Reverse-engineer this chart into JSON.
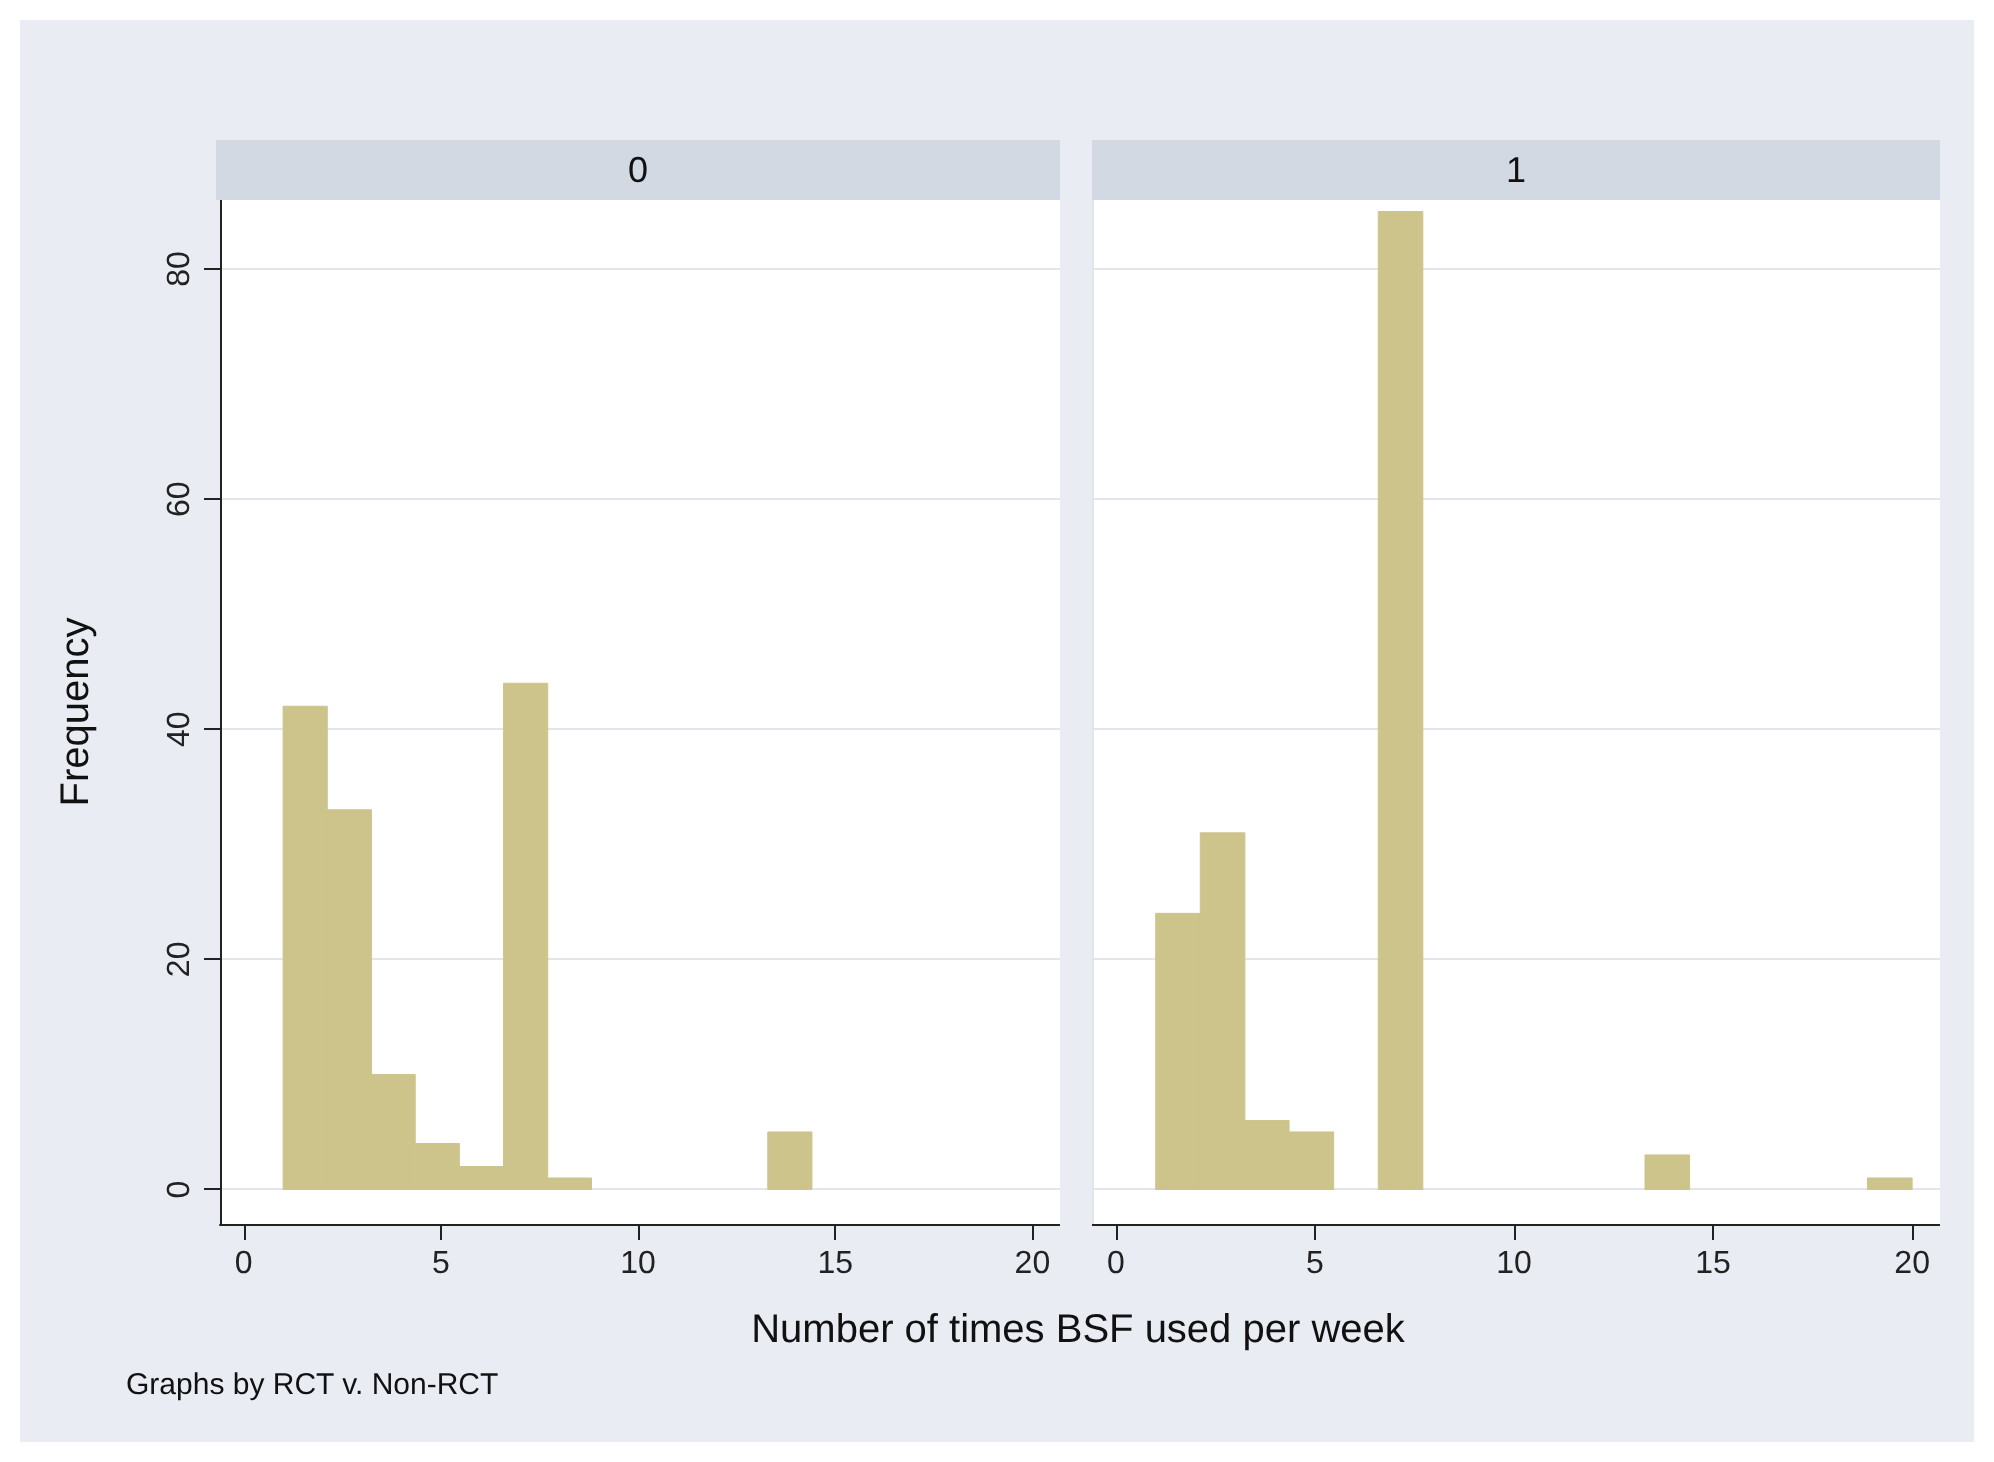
{
  "chart_data": [
    {
      "type": "histogram",
      "title": "0",
      "xlabel": "Number of times BSF used per week",
      "ylabel": "Frequency",
      "annotations": [
        "Graphs by RCT v. Non-RCT"
      ],
      "color": "#cdc48c",
      "bins": [
        1,
        2.12,
        3.24,
        4.35,
        5.47,
        6.59,
        7.71,
        8.82,
        9.94,
        11.06,
        12.18,
        13.29,
        14.41,
        15.53,
        16.65,
        17.76,
        18.88,
        20
      ],
      "values": [
        42,
        33,
        10,
        4,
        2,
        44,
        1,
        0,
        0,
        0,
        0,
        5,
        0,
        0,
        0,
        0,
        0
      ],
      "xlim": [
        -0.6,
        20.7
      ],
      "xticks": [
        0,
        5,
        10,
        15,
        20
      ],
      "ylim": [
        -3,
        86
      ],
      "yticks": [
        0,
        20,
        40,
        60,
        80
      ],
      "grid": "y"
    },
    {
      "type": "histogram",
      "title": "1",
      "color": "#cdc48c",
      "bins": [
        1,
        2.12,
        3.24,
        4.35,
        5.47,
        6.59,
        7.71,
        8.82,
        9.94,
        11.06,
        12.18,
        13.29,
        14.41,
        15.53,
        16.65,
        17.76,
        18.88,
        20
      ],
      "values": [
        24,
        31,
        6,
        5,
        0,
        85,
        0,
        0,
        0,
        0,
        0,
        3,
        0,
        0,
        0,
        0,
        1
      ],
      "xlim": [
        -0.6,
        20.7
      ],
      "xticks": [
        0,
        5,
        10,
        15,
        20
      ],
      "ylim": [
        -3,
        86
      ],
      "yticks": [
        0,
        20,
        40,
        60,
        80
      ],
      "grid": "y",
      "tick_labels": "x"
    }
  ]
}
